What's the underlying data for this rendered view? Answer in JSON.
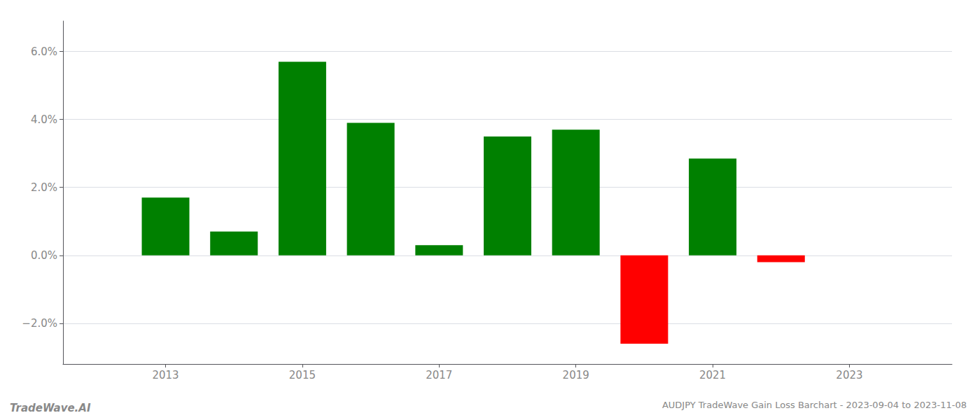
{
  "chart_data": {
    "type": "bar",
    "title": "AUDJPY TradeWave Gain Loss Barchart - 2023-09-04 to 2023-11-08",
    "annotations": [
      "TradeWave.AI"
    ],
    "x": [
      2013,
      2014,
      2015,
      2016,
      2017,
      2018,
      2019,
      2020,
      2021,
      2022
    ],
    "values": [
      0.017,
      0.007,
      0.057,
      0.039,
      0.003,
      0.035,
      0.037,
      -0.026,
      0.0285,
      -0.002
    ],
    "colors": [
      "#008000",
      "#008000",
      "#008000",
      "#008000",
      "#008000",
      "#008000",
      "#008000",
      "#ff0000",
      "#008000",
      "#ff0000"
    ],
    "xlim": [
      2011.5,
      2024.5
    ],
    "xticks": [
      2013,
      2015,
      2017,
      2019,
      2021,
      2023
    ],
    "ylim": [
      -0.032,
      0.069
    ],
    "yticks": [
      {
        "value": -0.02,
        "label": "−2.0%"
      },
      {
        "value": 0.0,
        "label": "0.0%"
      },
      {
        "value": 0.02,
        "label": "2.0%"
      },
      {
        "value": 0.04,
        "label": "4.0%"
      },
      {
        "value": 0.06,
        "label": "6.0%"
      }
    ],
    "grid": true
  }
}
